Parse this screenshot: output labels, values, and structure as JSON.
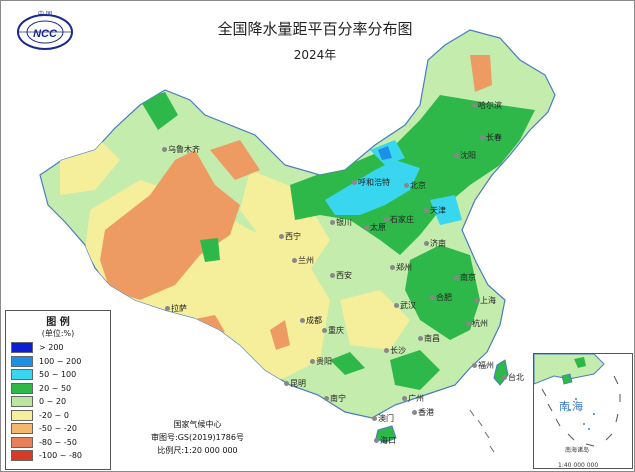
{
  "title": "全国降水量距平百分率分布图",
  "subtitle": "2024年",
  "logo": {
    "text_top": "中 国",
    "text_mid": "NCC",
    "text_bottom": "单位:%"
  },
  "legend": {
    "title": "图 例",
    "unit": "(单位:%)",
    "items": [
      {
        "label": "> 200",
        "color": "#0a1fd6"
      },
      {
        "label": "100 ~ 200",
        "color": "#1e8fe6"
      },
      {
        "label": "50 ~ 100",
        "color": "#38d7ef"
      },
      {
        "label": "20 ~ 50",
        "color": "#2fb84a"
      },
      {
        "label": "0 ~ 20",
        "color": "#b9e7a0"
      },
      {
        "label": "-20 ~ 0",
        "color": "#f5ee9a"
      },
      {
        "label": "-50 ~ -20",
        "color": "#f2b86e"
      },
      {
        "label": "-80 ~ -50",
        "color": "#e8805a"
      },
      {
        "label": "-100 ~ -80",
        "color": "#d83a26"
      }
    ]
  },
  "credit": {
    "agency": "国家气候中心",
    "review_no": "审图号:GS(2019)1786号",
    "scale": "比例尺:1:20 000 000"
  },
  "inset": {
    "label": "南海",
    "title": "南海诸岛",
    "scale": "1:40 000 000"
  },
  "cities": [
    {
      "name": "哈尔滨"
    },
    {
      "name": "长春"
    },
    {
      "name": "沈阳"
    },
    {
      "name": "乌鲁木齐"
    },
    {
      "name": "呼和浩特"
    },
    {
      "name": "北京"
    },
    {
      "name": "天津"
    },
    {
      "name": "石家庄"
    },
    {
      "name": "太原"
    },
    {
      "name": "银川"
    },
    {
      "name": "济南"
    },
    {
      "name": "西宁"
    },
    {
      "name": "兰州"
    },
    {
      "name": "郑州"
    },
    {
      "name": "西安"
    },
    {
      "name": "拉萨"
    },
    {
      "name": "南京"
    },
    {
      "name": "合肥"
    },
    {
      "name": "上海"
    },
    {
      "name": "武汉"
    },
    {
      "name": "成都"
    },
    {
      "name": "杭州"
    },
    {
      "name": "重庆"
    },
    {
      "name": "南昌"
    },
    {
      "name": "长沙"
    },
    {
      "name": "贵阳"
    },
    {
      "name": "福州"
    },
    {
      "name": "台北"
    },
    {
      "name": "昆明"
    },
    {
      "name": "南宁"
    },
    {
      "name": "广州"
    },
    {
      "name": "澳门"
    },
    {
      "name": "香港"
    },
    {
      "name": "海口"
    }
  ]
}
